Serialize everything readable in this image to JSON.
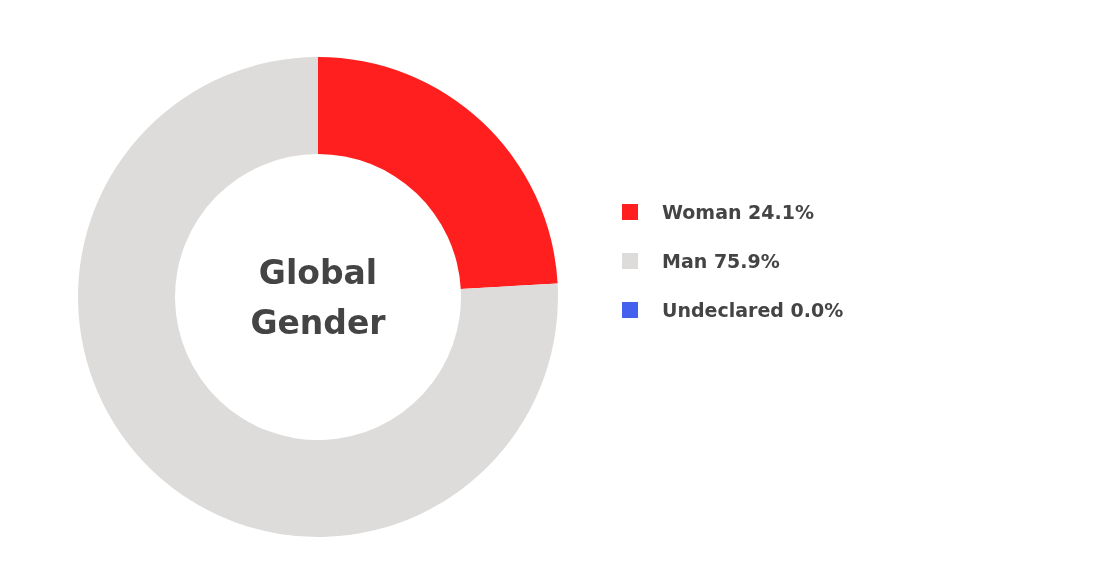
{
  "chart_data": {
    "type": "donut",
    "title": "Global Gender",
    "categories": [
      "Woman",
      "Man",
      "Undeclared"
    ],
    "values": [
      24.1,
      75.9,
      0.0
    ],
    "value_labels": [
      "24.1%",
      "75.9%",
      "0.0%"
    ],
    "colors": [
      "#ff1f1f",
      "#dddcdb",
      "#4361ee"
    ],
    "legend": "right"
  }
}
